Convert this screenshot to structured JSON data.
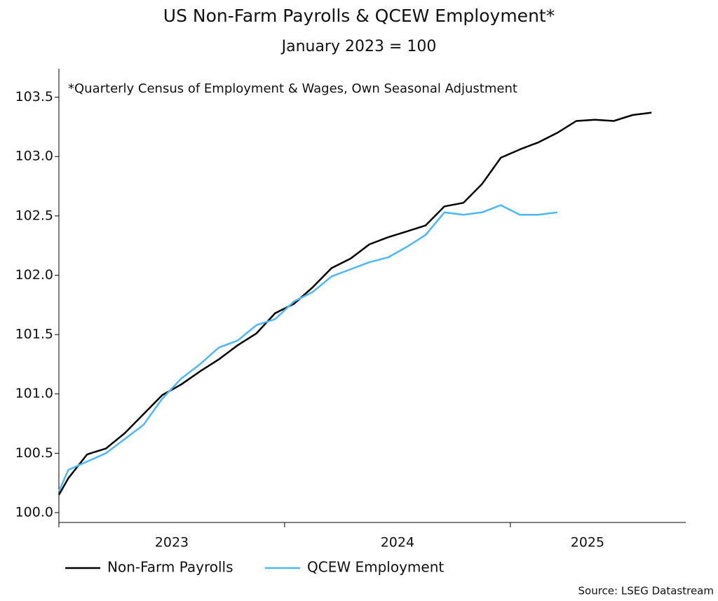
{
  "chart_data": {
    "type": "line",
    "title": "US Non-Farm Payrolls & QCEW Employment*",
    "subtitle": "January 2023 = 100",
    "annotation": "*Quarterly Census of Employment & Wages, Own Seasonal Adjustment",
    "source": "Source: LSEG Datastream",
    "x": [
      2023,
      2023.042,
      2023.125,
      2023.208,
      2023.292,
      2023.375,
      2023.458,
      2023.542,
      2023.625,
      2023.708,
      2023.792,
      2023.875,
      2023.958,
      2024.042,
      2024.125,
      2024.208,
      2024.292,
      2024.375,
      2024.458,
      2024.542,
      2024.625,
      2024.708,
      2024.792,
      2024.875,
      2024.958,
      2025.042,
      2025.125,
      2025.208,
      2025.292,
      2025.375,
      2025.458,
      2025.542,
      2025.625
    ],
    "series": [
      {
        "name": "Non-Farm Payrolls",
        "color": "#000000",
        "values": [
          100.15,
          100.29,
          100.49,
          100.54,
          100.67,
          100.83,
          100.99,
          101.08,
          101.19,
          101.29,
          101.41,
          101.51,
          101.68,
          101.76,
          101.9,
          102.06,
          102.14,
          102.26,
          102.32,
          102.37,
          102.42,
          102.58,
          102.61,
          102.77,
          102.99,
          103.06,
          103.12,
          103.2,
          103.3,
          103.31,
          103.3,
          103.35,
          103.37
        ]
      },
      {
        "name": "QCEW Employment",
        "color": "#4db8f5",
        "values": [
          100.18,
          100.36,
          100.43,
          100.5,
          100.62,
          100.74,
          100.96,
          101.13,
          101.25,
          101.39,
          101.45,
          101.58,
          101.63,
          101.78,
          101.86,
          101.99,
          102.05,
          102.11,
          102.15,
          102.24,
          102.34,
          102.53,
          102.51,
          102.53,
          102.59,
          102.51,
          102.51,
          102.53,
          null,
          null,
          null,
          null,
          null
        ]
      }
    ],
    "xlim": [
      2023,
      2025.777
    ],
    "xticks": [
      2023,
      2024,
      2025
    ],
    "x_labels": [
      "2023",
      "2024",
      "2025"
    ],
    "ylim": [
      99.917,
      103.74
    ],
    "yticks": [
      {
        "value": 100,
        "label": "100.0"
      },
      {
        "value": 100.5,
        "label": "100.5"
      },
      {
        "value": 101,
        "label": "101.0"
      },
      {
        "value": 101.5,
        "label": "101.5"
      },
      {
        "value": 102,
        "label": "102.0"
      },
      {
        "value": 102.5,
        "label": "102.5"
      },
      {
        "value": 103,
        "label": "103.0"
      },
      {
        "value": 103.5,
        "label": "103.5"
      }
    ],
    "grid": false
  }
}
